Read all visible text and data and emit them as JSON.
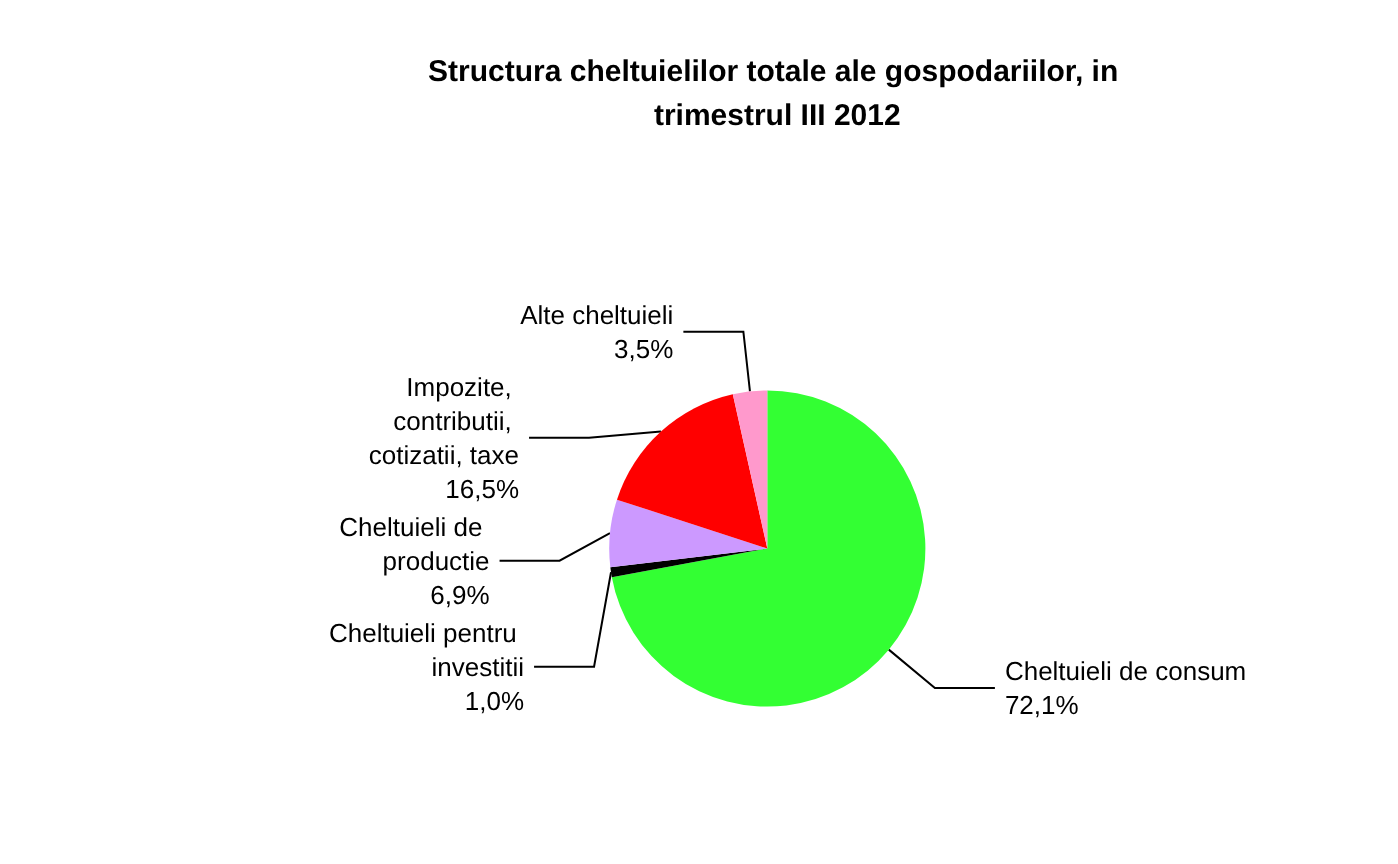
{
  "chart_data": {
    "type": "pie",
    "title": "Structura cheltuielilor totale ale gospodariilor, in trimestrul III 2012",
    "categories": [
      "Cheltuieli de consum",
      "Cheltuieli pentru investitii",
      "Cheltuieli de productie",
      "Impozite, contributii, cotizatii, taxe",
      "Alte cheltuieli"
    ],
    "values": [
      72.1,
      1.0,
      6.9,
      16.5,
      3.5
    ],
    "value_labels": [
      "72,1%",
      "1,0%",
      "6,9%",
      "16,5%",
      "3,5%"
    ],
    "colors": [
      "#33ff33",
      "#000000",
      "#cc99ff",
      "#ff0000",
      "#ff99cc"
    ],
    "legend": false
  }
}
